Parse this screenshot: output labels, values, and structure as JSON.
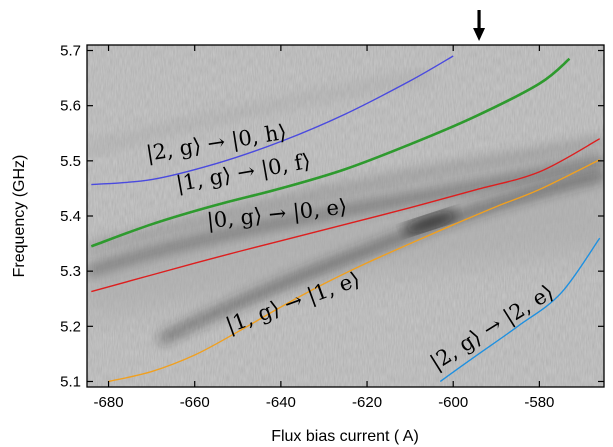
{
  "chart_data": {
    "type": "line",
    "xlabel": "Flux bias current (  A)",
    "ylabel": "Frequency (GHz)",
    "xlim": [
      -685,
      -565
    ],
    "ylim": [
      5.09,
      5.71
    ],
    "x_ticks": [
      -680,
      -660,
      -640,
      -620,
      -600,
      -580
    ],
    "y_ticks": [
      5.1,
      5.2,
      5.3,
      5.4,
      5.5,
      5.6,
      5.7
    ],
    "x_tick_labels": [
      "-680",
      "-660",
      "-640",
      "-620",
      "-600",
      "-580"
    ],
    "y_tick_labels": [
      "5.1",
      "5.2",
      "5.3",
      "5.4",
      "5.5",
      "5.6",
      "5.7"
    ],
    "background": "grayscale spectroscopy map",
    "arrow_marker": {
      "x": -594,
      "direction": "down",
      "color": "#000000"
    },
    "series": [
      {
        "color": "#4a4adf",
        "x": [
          -684,
          -670,
          -655,
          -640,
          -625,
          -610,
          -600
        ],
        "y": [
          5.457,
          5.466,
          5.495,
          5.535,
          5.585,
          5.645,
          5.69
        ]
      },
      {
        "color": "#2e9a2e",
        "x": [
          -684,
          -670,
          -655,
          -640,
          -625,
          -610,
          -595,
          -580,
          -573
        ],
        "y": [
          5.345,
          5.385,
          5.42,
          5.45,
          5.485,
          5.53,
          5.58,
          5.64,
          5.685
        ]
      },
      {
        "color": "#dd1e1e",
        "x": [
          -684,
          -670,
          -655,
          -640,
          -625,
          -610,
          -595,
          -580,
          -566
        ],
        "y": [
          5.263,
          5.293,
          5.325,
          5.355,
          5.385,
          5.415,
          5.447,
          5.48,
          5.54
        ]
      },
      {
        "color": "#f0a020",
        "x": [
          -680,
          -670,
          -660,
          -650,
          -640,
          -630,
          -620,
          -610,
          -600,
          -590,
          -580,
          -566
        ],
        "y": [
          5.1,
          5.118,
          5.148,
          5.19,
          5.235,
          5.277,
          5.315,
          5.35,
          5.384,
          5.417,
          5.448,
          5.502
        ]
      },
      {
        "color": "#1e90e0",
        "x": [
          -603,
          -595,
          -585,
          -575,
          -566
        ],
        "y": [
          5.1,
          5.145,
          5.2,
          5.26,
          5.36
        ]
      }
    ],
    "annotations": [
      {
        "text": "|2, g⟩ → |0, h⟩",
        "x": -671,
        "y": 5.5,
        "angle": -9
      },
      {
        "text": "|1, g⟩ → |0, f⟩",
        "x": -664,
        "y": 5.445,
        "angle": -10
      },
      {
        "text": "|0, g⟩ → |0, e⟩",
        "x": -657,
        "y": 5.378,
        "angle": -6
      },
      {
        "text": "|1, g⟩ → |1, e⟩",
        "x": -652,
        "y": 5.188,
        "angle": -20
      },
      {
        "text": "|2, g⟩ → |2, e⟩",
        "x": -604,
        "y": 5.12,
        "angle": -32
      }
    ]
  }
}
